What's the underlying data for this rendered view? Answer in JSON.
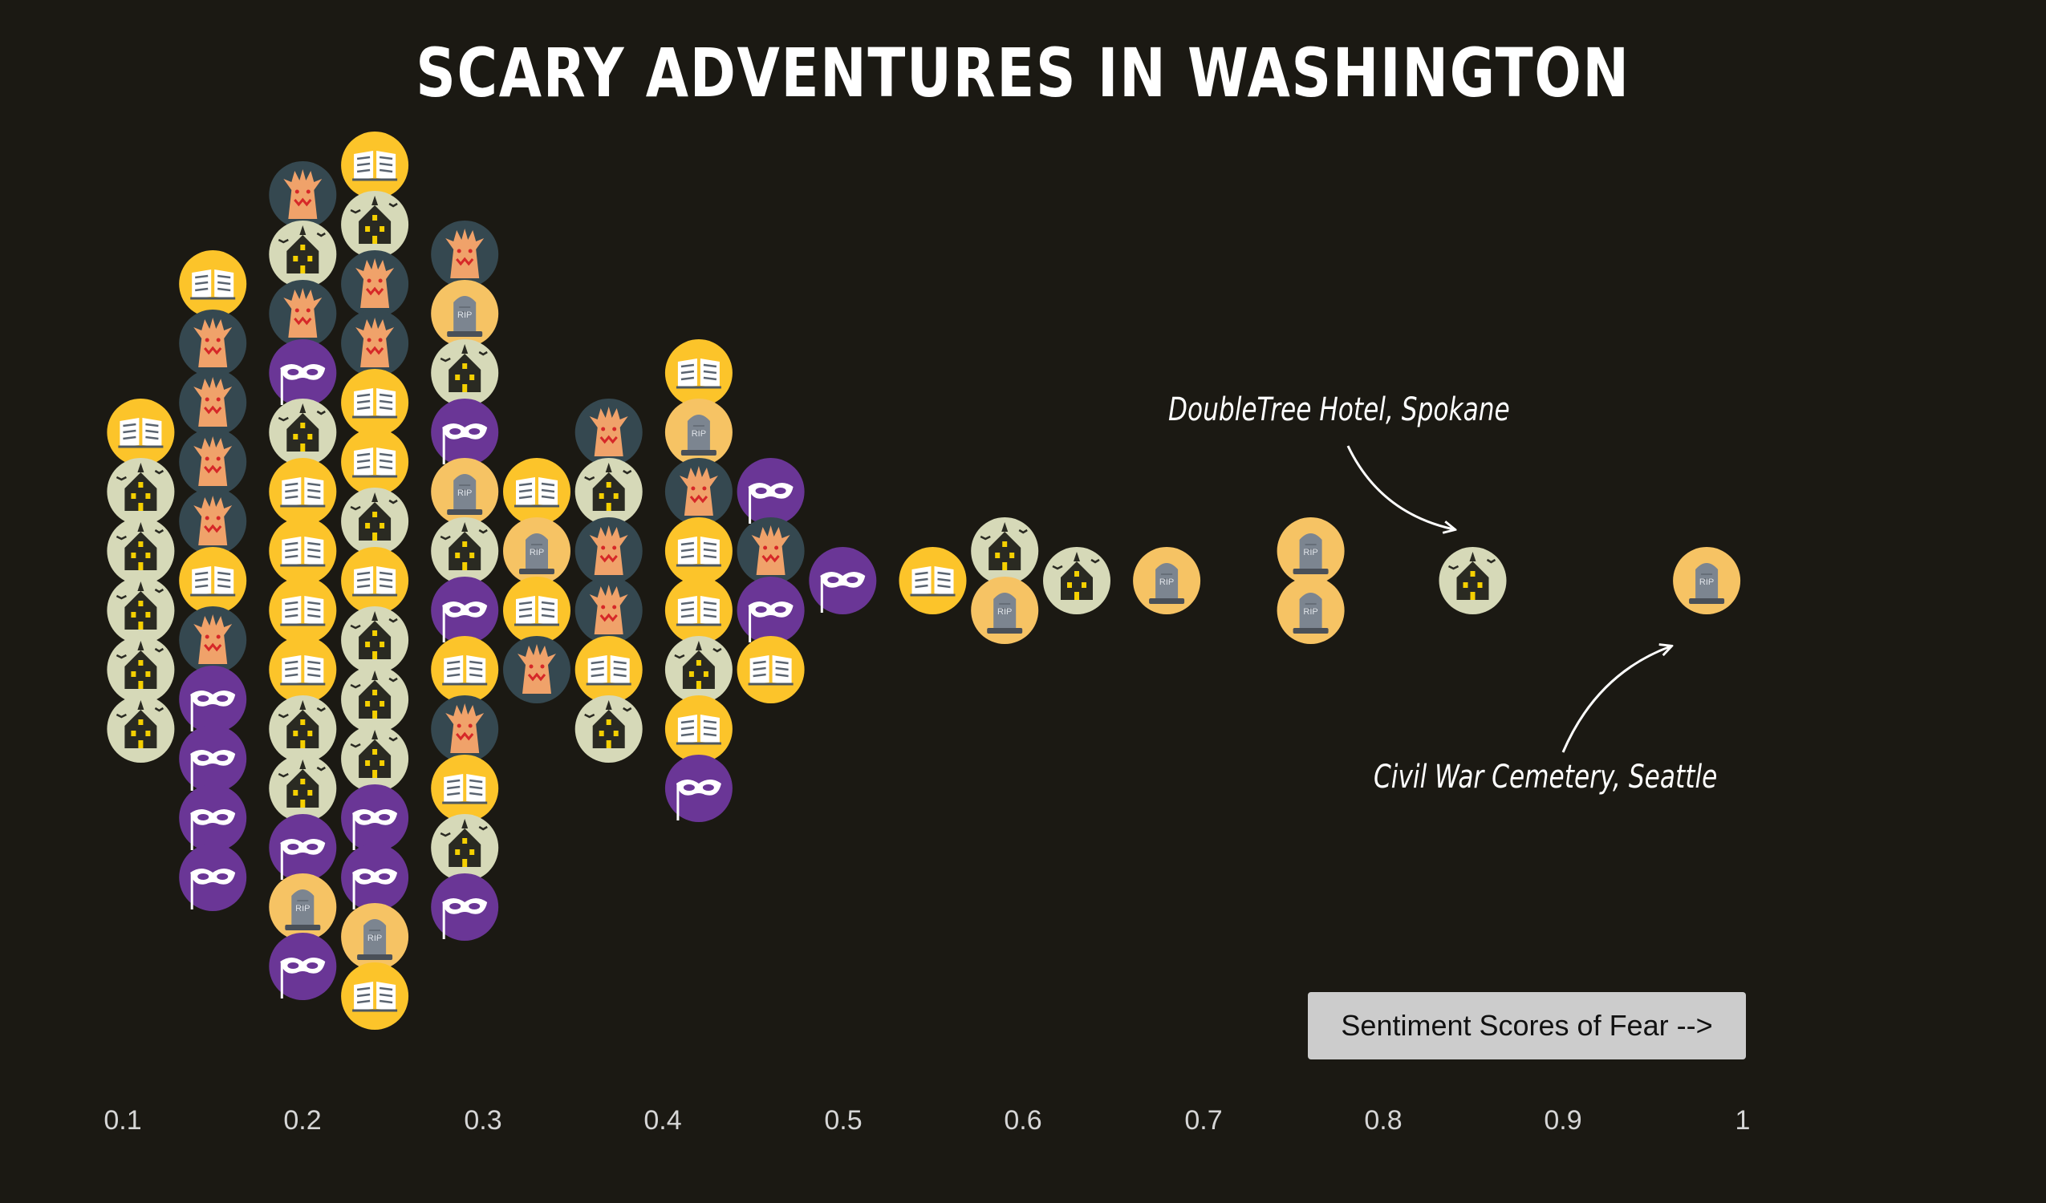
{
  "chart_data": {
    "type": "scatter",
    "title": "Scary Adventures in Washington",
    "xlim": [
      0.1,
      1
    ],
    "x_ticks": [
      "0.1",
      "0.2",
      "0.3",
      "0.4",
      "0.5",
      "0.6",
      "0.7",
      "0.8",
      "0.9",
      "1"
    ],
    "legend_label": "Sentiment Scores of Fear -->",
    "annotations": [
      {
        "text": "DoubleTree Hotel, Spokane",
        "x": 0.85
      },
      {
        "text": "Civil War Cemetery, Seattle",
        "x": 0.98
      }
    ],
    "category_colors": {
      "book": "#fcc42a",
      "house": "#d6d9b8",
      "tree": "#354850",
      "mask": "#6a3696",
      "grave": "#f6c364"
    },
    "columns": [
      {
        "x": 0.11,
        "icons": [
          "book",
          "house",
          "house",
          "house",
          "house",
          "house"
        ]
      },
      {
        "x": 0.15,
        "icons": [
          "book",
          "tree",
          "tree",
          "tree",
          "tree",
          "book",
          "tree",
          "mask",
          "mask",
          "mask",
          "mask"
        ]
      },
      {
        "x": 0.2,
        "icons": [
          "tree",
          "house",
          "tree",
          "mask",
          "house",
          "book",
          "book",
          "book",
          "book",
          "house",
          "house",
          "mask",
          "grave",
          "mask"
        ]
      },
      {
        "x": 0.24,
        "icons": [
          "book",
          "house",
          "tree",
          "tree",
          "book",
          "book",
          "house",
          "book",
          "house",
          "house",
          "house",
          "mask",
          "mask",
          "grave",
          "book"
        ]
      },
      {
        "x": 0.29,
        "icons": [
          "tree",
          "grave",
          "house",
          "mask",
          "grave",
          "house",
          "mask",
          "book",
          "tree",
          "book",
          "house",
          "mask"
        ]
      },
      {
        "x": 0.33,
        "icons": [
          "book",
          "grave",
          "book",
          "tree"
        ]
      },
      {
        "x": 0.37,
        "icons": [
          "tree",
          "house",
          "tree",
          "tree",
          "book",
          "house"
        ]
      },
      {
        "x": 0.42,
        "icons": [
          "book",
          "grave",
          "tree",
          "book",
          "book",
          "house",
          "book",
          "mask"
        ]
      },
      {
        "x": 0.46,
        "icons": [
          "mask",
          "tree",
          "mask",
          "book"
        ]
      },
      {
        "x": 0.5,
        "icons": [
          "mask"
        ]
      },
      {
        "x": 0.55,
        "icons": [
          "book"
        ]
      },
      {
        "x": 0.59,
        "icons": [
          "house",
          "grave"
        ]
      },
      {
        "x": 0.63,
        "icons": [
          "house"
        ]
      },
      {
        "x": 0.68,
        "icons": [
          "grave"
        ]
      },
      {
        "x": 0.76,
        "icons": [
          "grave",
          "grave"
        ]
      },
      {
        "x": 0.85,
        "icons": [
          "house"
        ]
      },
      {
        "x": 0.98,
        "icons": [
          "grave"
        ]
      }
    ]
  }
}
